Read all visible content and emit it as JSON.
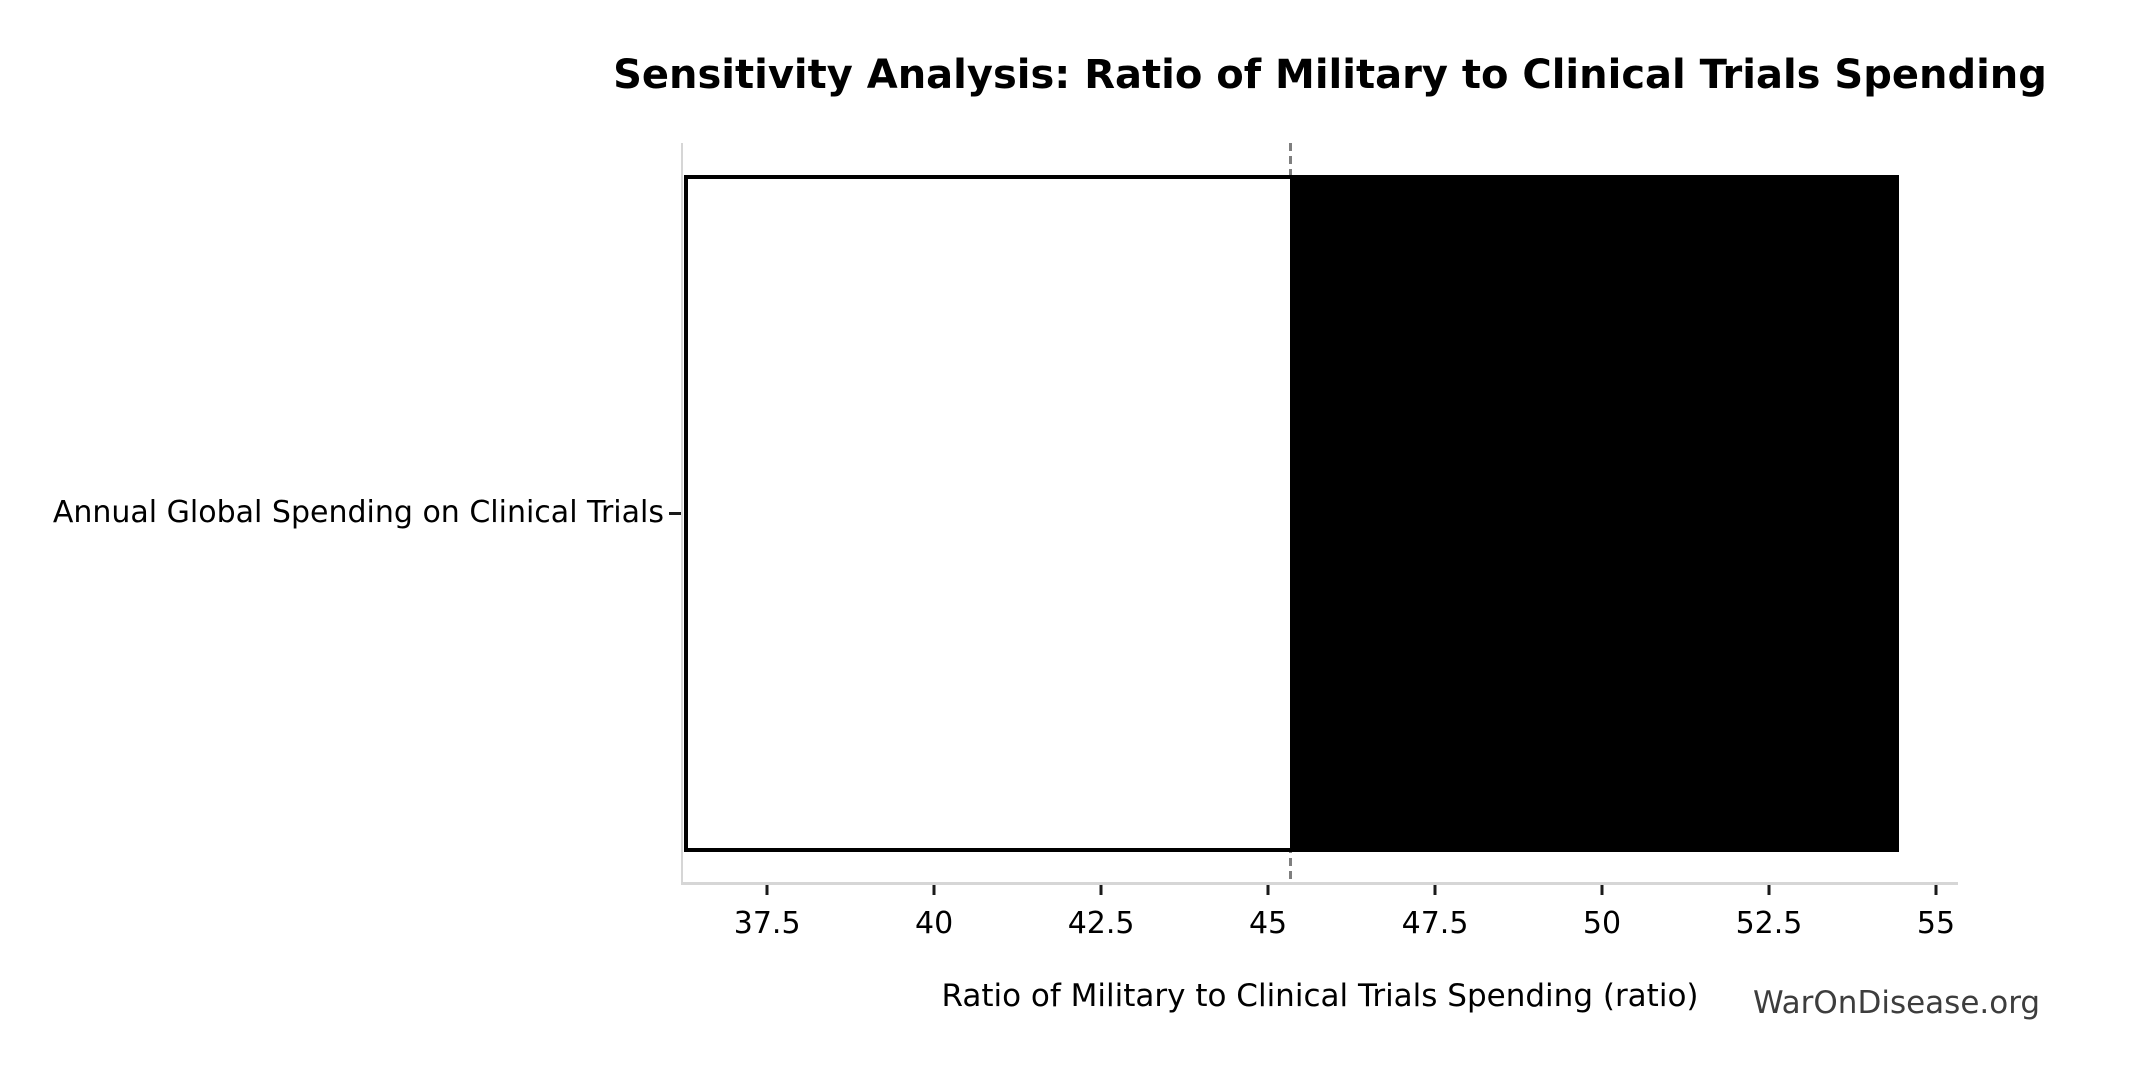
{
  "title": "Sensitivity Analysis: Ratio of Military to Clinical Trials Spending",
  "watermark": "WarOnDisease.org",
  "colors": {
    "background": "#ffffff",
    "text": "#000000",
    "spine": "#d6d6d6",
    "tick_mark": "#1a1a1a",
    "baseline_dash": "#7f7f7f",
    "bar_border": "#000000",
    "bar_low_fill": "#ffffff",
    "bar_high_fill": "#000000",
    "watermark_text": "#3d3d3d"
  },
  "chart_data": {
    "type": "bar",
    "subtype": "tornado-sensitivity",
    "orientation": "horizontal",
    "title": "Sensitivity Analysis: Ratio of Military to Clinical Trials Spending",
    "xlabel": "Ratio of Military to Clinical Trials Spending (ratio)",
    "ylabel": "",
    "categories": [
      "Annual Global Spending on Clinical Trials"
    ],
    "bar": {
      "low": 36.26,
      "base": 45.33,
      "high": 54.45
    },
    "series": [
      {
        "name": "low-to-base segment",
        "from": 36.26,
        "to": 45.33,
        "fill": "#ffffff"
      },
      {
        "name": "base-to-high segment",
        "from": 45.33,
        "to": 54.45,
        "fill": "#000000"
      }
    ],
    "baseline_value": 45.33,
    "xlim": [
      36.24,
      55.33
    ],
    "x_ticks": [
      37.5,
      40,
      42.5,
      45,
      47.5,
      50,
      52.5,
      55
    ],
    "x_tick_labels": [
      "37.5",
      "40",
      "42.5",
      "45",
      "47.5",
      "50",
      "52.5",
      "55"
    ],
    "grid": false,
    "legend": false
  }
}
